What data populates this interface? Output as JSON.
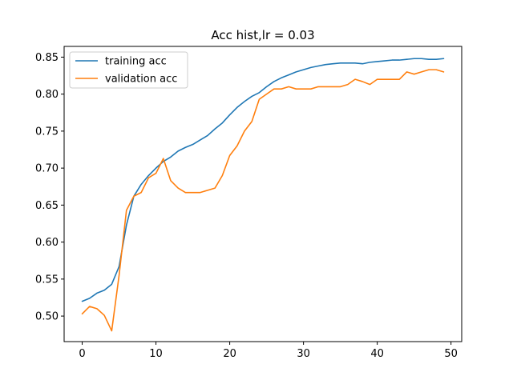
{
  "chart_data": {
    "type": "line",
    "title": "Acc hist,lr = 0.03",
    "xlabel": "",
    "ylabel": "",
    "xlim": [
      -2.45,
      51.45
    ],
    "ylim": [
      0.4655,
      0.8645
    ],
    "xticks": [
      0,
      10,
      20,
      30,
      40,
      50
    ],
    "yticks": [
      0.5,
      0.55,
      0.6,
      0.65,
      0.7,
      0.75,
      0.8,
      0.85
    ],
    "grid": false,
    "legend_position": "top-left",
    "x": [
      0,
      1,
      2,
      3,
      4,
      5,
      6,
      7,
      8,
      9,
      10,
      11,
      12,
      13,
      14,
      15,
      16,
      17,
      18,
      19,
      20,
      21,
      22,
      23,
      24,
      25,
      26,
      27,
      28,
      29,
      30,
      31,
      32,
      33,
      34,
      35,
      36,
      37,
      38,
      39,
      40,
      41,
      42,
      43,
      44,
      45,
      46,
      47,
      48,
      49
    ],
    "series": [
      {
        "name": "training acc",
        "color": "#1f77b4",
        "values": [
          0.52,
          0.524,
          0.531,
          0.535,
          0.543,
          0.567,
          0.623,
          0.662,
          0.678,
          0.69,
          0.7,
          0.709,
          0.715,
          0.723,
          0.728,
          0.732,
          0.738,
          0.744,
          0.753,
          0.761,
          0.772,
          0.782,
          0.79,
          0.797,
          0.802,
          0.81,
          0.817,
          0.822,
          0.826,
          0.83,
          0.833,
          0.836,
          0.838,
          0.84,
          0.841,
          0.842,
          0.842,
          0.842,
          0.841,
          0.843,
          0.844,
          0.845,
          0.846,
          0.846,
          0.847,
          0.848,
          0.848,
          0.847,
          0.847,
          0.848
        ]
      },
      {
        "name": "validation acc",
        "color": "#ff7f0e",
        "values": [
          0.503,
          0.513,
          0.51,
          0.501,
          0.48,
          0.555,
          0.643,
          0.662,
          0.667,
          0.687,
          0.693,
          0.713,
          0.683,
          0.673,
          0.667,
          0.667,
          0.667,
          0.67,
          0.673,
          0.69,
          0.717,
          0.73,
          0.75,
          0.763,
          0.793,
          0.8,
          0.807,
          0.807,
          0.81,
          0.807,
          0.807,
          0.807,
          0.81,
          0.81,
          0.81,
          0.81,
          0.813,
          0.82,
          0.817,
          0.813,
          0.82,
          0.82,
          0.82,
          0.82,
          0.83,
          0.827,
          0.83,
          0.833,
          0.833,
          0.83
        ]
      }
    ]
  }
}
